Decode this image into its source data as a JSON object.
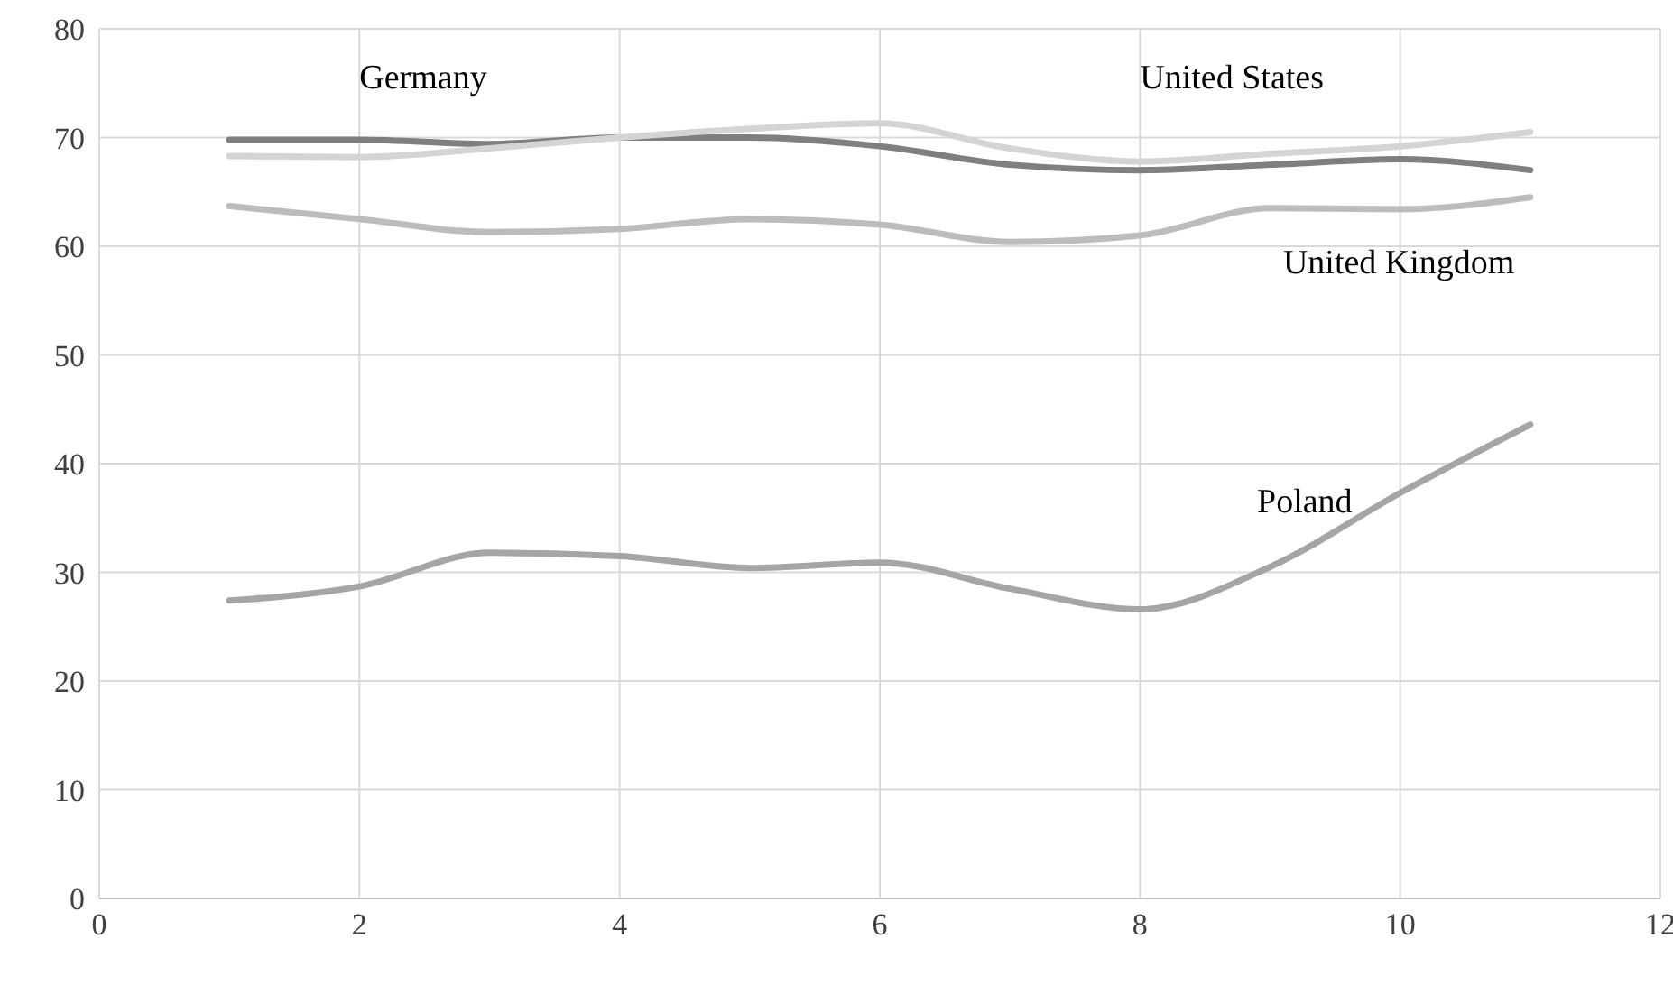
{
  "chart_data": {
    "type": "line",
    "x": [
      1,
      2,
      3,
      4,
      5,
      6,
      7,
      8,
      9,
      10,
      11
    ],
    "series": [
      {
        "name": "Germany",
        "color": "#7f7f7f",
        "values": [
          69.8,
          69.8,
          69.4,
          70,
          70,
          69.2,
          67.5,
          67,
          67.5,
          68,
          67
        ]
      },
      {
        "name": "United States",
        "color": "#d4d4d4",
        "values": [
          68.3,
          68.2,
          69,
          70,
          70.8,
          71.3,
          69,
          67.8,
          68.5,
          69.2,
          70.5
        ]
      },
      {
        "name": "United Kingdom",
        "color": "#bcbcbc",
        "values": [
          63.7,
          62.5,
          61.3,
          61.6,
          62.5,
          62,
          60.4,
          61,
          63.5,
          63.4,
          64.5
        ]
      },
      {
        "name": "Poland",
        "color": "#a5a5a5",
        "values": [
          27.4,
          28.7,
          31.8,
          31.5,
          30.4,
          30.9,
          28.5,
          26.6,
          30.5,
          37.3,
          43.6
        ]
      }
    ],
    "xlim": [
      0,
      12
    ],
    "xticks": [
      0,
      2,
      4,
      6,
      8,
      10,
      12
    ],
    "ylim": [
      0,
      80
    ],
    "yticks": [
      0,
      10,
      20,
      30,
      40,
      50,
      60,
      70,
      80
    ],
    "grid": true,
    "legend": false,
    "marker": "none",
    "line_style": "solid"
  }
}
